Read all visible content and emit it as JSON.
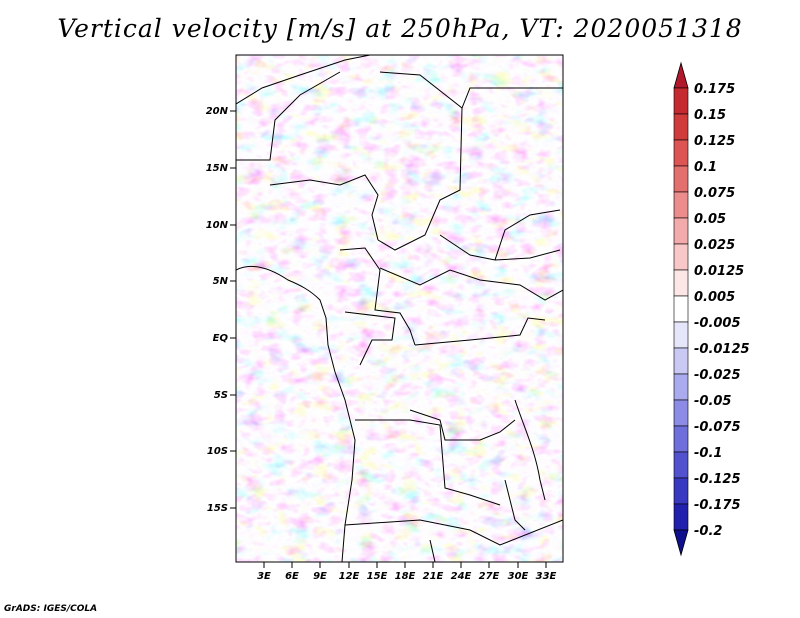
{
  "title": "Vertical velocity [m/s] at 250hPa, VT: 2020051318",
  "credit": "GrADS: IGES/COLA",
  "map": {
    "lat_labels": [
      "20N",
      "15N",
      "10N",
      "5N",
      "EQ",
      "5S",
      "10S",
      "15S"
    ],
    "lon_labels": [
      "3E",
      "6E",
      "9E",
      "12E",
      "15E",
      "18E",
      "21E",
      "24E",
      "27E",
      "30E",
      "33E"
    ]
  },
  "colorbar": {
    "labels": [
      "0.175",
      "0.15",
      "0.125",
      "0.1",
      "0.075",
      "0.05",
      "0.025",
      "0.0125",
      "0.005",
      "-0.005",
      "-0.0125",
      "-0.025",
      "-0.05",
      "-0.075",
      "-0.1",
      "-0.125",
      "-0.175",
      "-0.2"
    ],
    "colors": [
      "#b2182b",
      "#c42a2f",
      "#d03b3b",
      "#dc5454",
      "#e46f6f",
      "#ec8c8c",
      "#f3aaaa",
      "#f8c8c8",
      "#fce6e6",
      "#ffffff",
      "#e6e6fb",
      "#c9c9f4",
      "#aaaaee",
      "#8c8ce6",
      "#6f6fdc",
      "#5252cf",
      "#3838c0",
      "#2121ad",
      "#10108f"
    ]
  },
  "legend": {
    "high_color": "#b2182b",
    "low_color": "#10108f"
  }
}
